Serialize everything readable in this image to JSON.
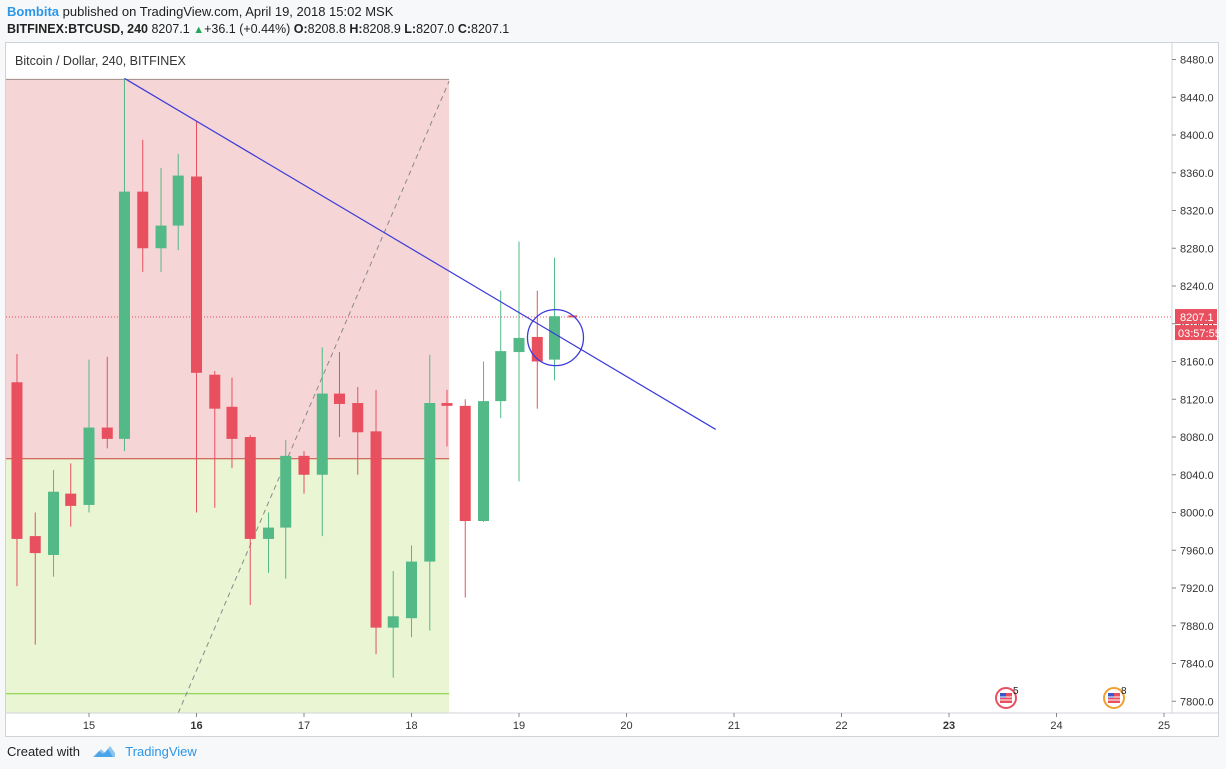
{
  "header": {
    "author": "Bombita",
    "published_text": "published on TradingView.com, April 19, 2018 15:02 MSK",
    "symbol": "BITFINEX:BTCUSD, 240",
    "last": "8207.1",
    "change": "+36.1 (+0.44%)",
    "o_label": "O:",
    "o_value": "8208.8",
    "h_label": "H:",
    "h_value": "8208.9",
    "l_label": "L:",
    "l_value": "8207.0",
    "c_label": "C:",
    "c_value": "8207.1"
  },
  "legend": {
    "series_title": "Bitcoin / Dollar, 240, BITFINEX"
  },
  "footer": {
    "created_with": "Created with",
    "brand": "TradingView"
  },
  "price_tag": {
    "price": "8207.1",
    "countdown": "03:57:55"
  },
  "events": [
    {
      "icon": "us-flag-event-icon",
      "count": "5",
      "date": "Apr 23"
    },
    {
      "icon": "us-flag-event-icon",
      "count": "8",
      "date": "Apr 24"
    }
  ],
  "colors": {
    "up": "#52b987",
    "down": "#e8505f",
    "line": "#3b3bdb",
    "tag": "#e8505f",
    "zone_red": "#f5d5d5",
    "zone_green": "#e9f5d3"
  },
  "chart_data": {
    "type": "candlestick",
    "interval": "240",
    "y_axis": {
      "range": [
        7780,
        8490
      ],
      "ticks": [
        "8480.0",
        "8440.0",
        "8400.0",
        "8360.0",
        "8320.0",
        "8280.0",
        "8240.0",
        "8200.0",
        "8160.0",
        "8120.0",
        "8080.0",
        "8040.0",
        "8000.0",
        "7960.0",
        "7920.0",
        "7880.0",
        "7840.0",
        "7800.0"
      ],
      "position": "right"
    },
    "x_axis": {
      "ticks": [
        {
          "label": "15",
          "day": 15
        },
        {
          "label": "16",
          "day": 16,
          "bold": true
        },
        {
          "label": "17",
          "day": 17
        },
        {
          "label": "18",
          "day": 18
        },
        {
          "label": "19",
          "day": 19
        },
        {
          "label": "20",
          "day": 20
        },
        {
          "label": "21",
          "day": 21
        },
        {
          "label": "22",
          "day": 22
        },
        {
          "label": "23",
          "day": 23,
          "bold": true
        },
        {
          "label": "24",
          "day": 24
        },
        {
          "label": "25",
          "day": 25
        }
      ]
    },
    "candles": [
      {
        "t": 14.33,
        "o": 8138,
        "h": 8168,
        "l": 7922,
        "c": 7972
      },
      {
        "t": 14.5,
        "o": 7975,
        "h": 8000,
        "l": 7860,
        "c": 7957
      },
      {
        "t": 14.67,
        "o": 7955,
        "h": 8045,
        "l": 7932,
        "c": 8022
      },
      {
        "t": 14.83,
        "o": 8020,
        "h": 8052,
        "l": 7985,
        "c": 8007
      },
      {
        "t": 15.0,
        "o": 8008,
        "h": 8162,
        "l": 8000,
        "c": 8090
      },
      {
        "t": 15.17,
        "o": 8090,
        "h": 8165,
        "l": 8068,
        "c": 8078
      },
      {
        "t": 15.33,
        "o": 8078,
        "h": 8460,
        "l": 8065,
        "c": 8340
      },
      {
        "t": 15.5,
        "o": 8340,
        "h": 8395,
        "l": 8255,
        "c": 8280
      },
      {
        "t": 15.67,
        "o": 8280,
        "h": 8365,
        "l": 8255,
        "c": 8304
      },
      {
        "t": 15.83,
        "o": 8304,
        "h": 8380,
        "l": 8278,
        "c": 8357
      },
      {
        "t": 16.0,
        "o": 8356,
        "h": 8415,
        "l": 8000,
        "c": 8148
      },
      {
        "t": 16.17,
        "o": 8146,
        "h": 8150,
        "l": 8005,
        "c": 8110
      },
      {
        "t": 16.33,
        "o": 8112,
        "h": 8143,
        "l": 8047,
        "c": 8078
      },
      {
        "t": 16.5,
        "o": 8080,
        "h": 8082,
        "l": 7902,
        "c": 7972
      },
      {
        "t": 16.67,
        "o": 7972,
        "h": 8000,
        "l": 7936,
        "c": 7984
      },
      {
        "t": 16.83,
        "o": 7984,
        "h": 8077,
        "l": 7930,
        "c": 8060
      },
      {
        "t": 17.0,
        "o": 8060,
        "h": 8065,
        "l": 8020,
        "c": 8040
      },
      {
        "t": 17.17,
        "o": 8040,
        "h": 8175,
        "l": 7975,
        "c": 8126
      },
      {
        "t": 17.33,
        "o": 8126,
        "h": 8170,
        "l": 8080,
        "c": 8115
      },
      {
        "t": 17.5,
        "o": 8116,
        "h": 8133,
        "l": 8040,
        "c": 8085
      },
      {
        "t": 17.67,
        "o": 8086,
        "h": 8130,
        "l": 7850,
        "c": 7878
      },
      {
        "t": 17.83,
        "o": 7878,
        "h": 7938,
        "l": 7825,
        "c": 7890
      },
      {
        "t": 18.0,
        "o": 7888,
        "h": 7965,
        "l": 7868,
        "c": 7948
      },
      {
        "t": 18.17,
        "o": 7948,
        "h": 8167,
        "l": 7875,
        "c": 8116
      },
      {
        "t": 18.33,
        "o": 8116,
        "h": 8130,
        "l": 8070,
        "c": 8113
      },
      {
        "t": 18.5,
        "o": 8113,
        "h": 8120,
        "l": 7910,
        "c": 7991
      },
      {
        "t": 18.67,
        "o": 7991,
        "h": 8160,
        "l": 7990,
        "c": 8118
      },
      {
        "t": 18.83,
        "o": 8118,
        "h": 8235,
        "l": 8100,
        "c": 8171
      },
      {
        "t": 19.0,
        "o": 8170,
        "h": 8287,
        "l": 8033,
        "c": 8185
      },
      {
        "t": 19.17,
        "o": 8186,
        "h": 8235,
        "l": 8110,
        "c": 8160
      },
      {
        "t": 19.33,
        "o": 8162,
        "h": 8270,
        "l": 8140,
        "c": 8208
      },
      {
        "t": 19.5,
        "o": 8208.8,
        "h": 8208.9,
        "l": 8207.0,
        "c": 8207.1
      }
    ],
    "drawings": {
      "long_position": {
        "t_start": 14.2,
        "t_end": 18.35,
        "entry": 8057,
        "target": 8459,
        "stop": 7808
      },
      "trend_line": {
        "t1": 15.33,
        "p1": 8460,
        "t2": 20.83,
        "p2": 8088
      },
      "diagonal_dashed": {
        "t1": 15.83,
        "p1": 7780,
        "t2": 18.35,
        "p2": 8457
      },
      "circle": {
        "t": 19.33,
        "p": 8198
      },
      "last_price_line": 8207.1
    }
  }
}
